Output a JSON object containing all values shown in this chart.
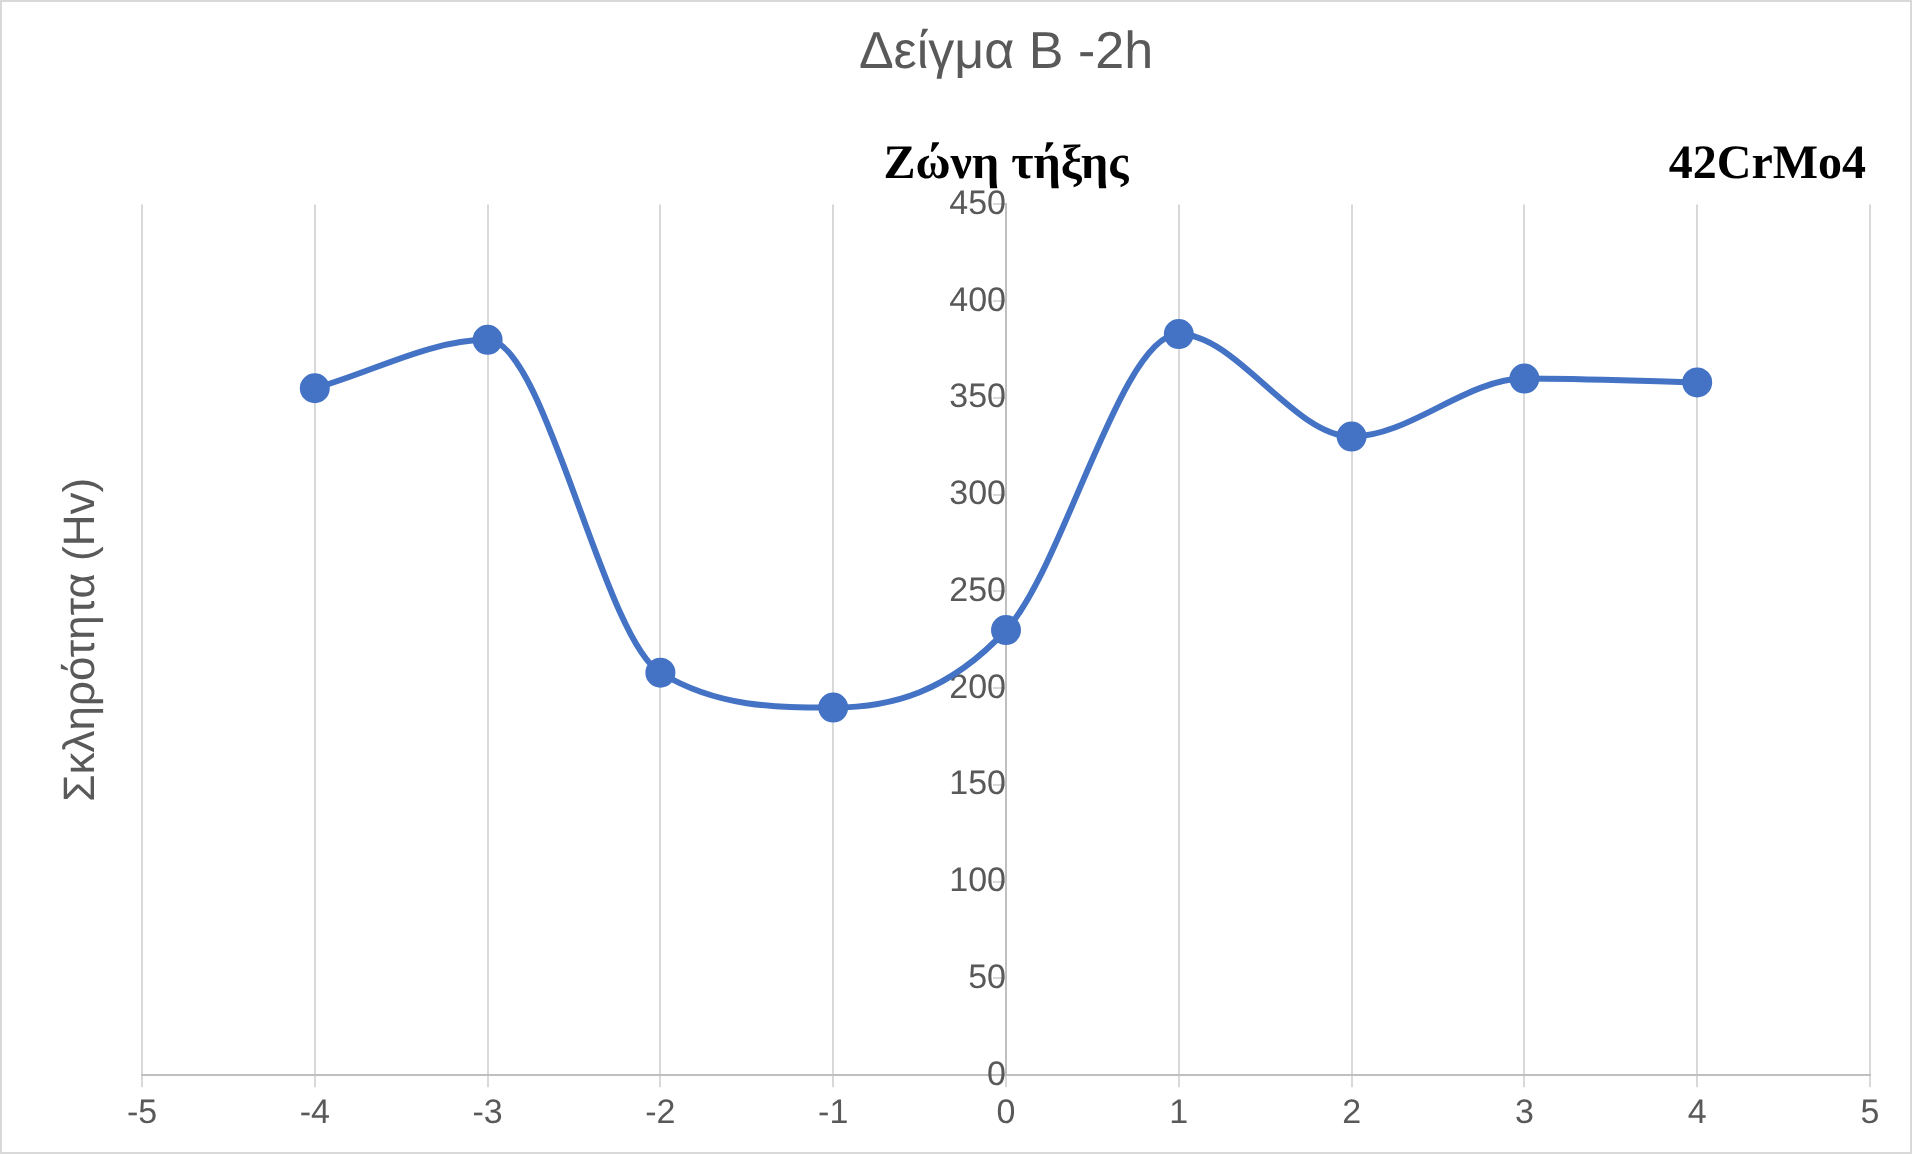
{
  "chart_data": {
    "type": "line",
    "title": "Δείγμα Β -2h",
    "ylabel": "Σκληρότητα (Hv)",
    "annotations": [
      "Ζώνη τήξης",
      "42CrMo4"
    ],
    "x": [
      -4,
      -3,
      -2,
      -1,
      0,
      1,
      2,
      3,
      4
    ],
    "series": [
      {
        "color": "#4472c4",
        "values": [
          355,
          380,
          208,
          190,
          230,
          383,
          330,
          360,
          358
        ]
      }
    ],
    "xlim": [
      -5,
      5
    ],
    "xticks": [
      -5,
      -4,
      -3,
      -2,
      -1,
      0,
      1,
      2,
      3,
      4,
      5
    ],
    "ylim": [
      0,
      450
    ],
    "yticks": [
      0,
      50,
      100,
      150,
      200,
      250,
      300,
      350,
      400,
      450
    ],
    "grid": "x",
    "legend": false,
    "marker": "circle",
    "line_style": "solid"
  }
}
